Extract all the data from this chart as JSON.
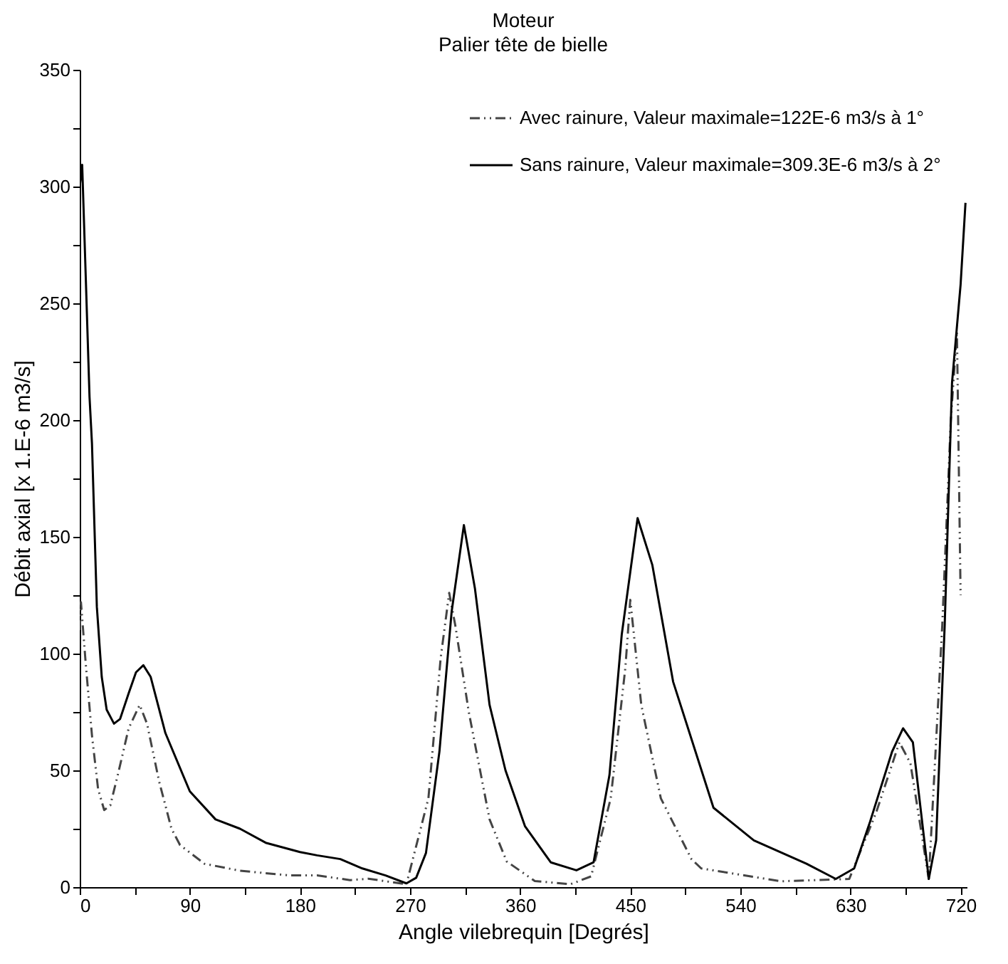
{
  "chart_data": {
    "type": "line",
    "title": "Moteur",
    "subtitle": "Palier tête de bielle",
    "xlabel": "Angle vilebrequin [Degrés]",
    "ylabel": "Débit axial [x 1.E-6 m3/s]",
    "xlim": [
      0,
      725
    ],
    "ylim": [
      0,
      350
    ],
    "xticks": [
      0,
      {
        "value": 45,
        "label": null
      },
      90,
      {
        "value": 135,
        "label": null
      },
      180,
      {
        "value": 225,
        "label": null
      },
      270,
      {
        "value": 315,
        "label": null
      },
      360,
      {
        "value": 405,
        "label": null
      },
      450,
      {
        "value": 495,
        "label": null
      },
      540,
      {
        "value": 585,
        "label": null
      },
      630,
      {
        "value": 675,
        "label": null
      },
      720
    ],
    "yticks": [
      0,
      {
        "value": 25,
        "label": null
      },
      50,
      {
        "value": 75,
        "label": null
      },
      100,
      {
        "value": 125,
        "label": null
      },
      150,
      {
        "value": 175,
        "label": null
      },
      200,
      {
        "value": 225,
        "label": null
      },
      250,
      {
        "value": 275,
        "label": null
      },
      300,
      {
        "value": 325,
        "label": null
      },
      350
    ],
    "grid": false,
    "legend": "top right",
    "series": [
      {
        "name": "Avec rainure, Valeur maximale=122E-6 m3/s à 1°",
        "color": "#444444",
        "line_style": "dashed",
        "x": [
          0,
          1,
          5,
          10,
          15,
          20,
          25,
          32,
          40,
          49,
          55,
          65,
          75,
          82,
          102,
          131,
          172,
          194,
          221,
          236,
          267,
          285,
          295,
          302,
          307,
          318,
          335,
          349,
          372,
          401,
          418,
          434,
          446,
          450,
          459,
          475,
          500,
          508,
          573,
          629,
          651,
          670,
          679,
          694,
          705,
          712,
          717,
          720
        ],
        "values": [
          110,
          122,
          95,
          65,
          42,
          33,
          35,
          50,
          68,
          78,
          70,
          45,
          25,
          18,
          10,
          7,
          5,
          5,
          3,
          3.6,
          1.2,
          38,
          98,
          126,
          112,
          75,
          29,
          11,
          2.6,
          1.2,
          4.6,
          38,
          94,
          123,
          78,
          38,
          12,
          8,
          2.5,
          3.5,
          32,
          62,
          53,
          3.5,
          112,
          200,
          238,
          125
        ]
      },
      {
        "name": "Sans rainure, Valeur maximale=309.3E-6 m3/s à 2°",
        "color": "#000000",
        "line_style": "solid",
        "x": [
          0,
          2,
          5,
          8,
          10,
          14,
          18,
          22,
          28,
          33,
          40,
          46,
          52,
          58,
          70,
          90,
          111,
          131,
          152,
          180,
          194,
          213,
          231,
          250,
          267,
          275,
          283,
          294,
          304,
          314,
          323,
          335,
          348,
          364,
          385,
          406,
          420,
          433,
          443,
          456,
          468,
          485,
          518,
          551,
          594,
          618,
          633,
          646,
          664,
          673,
          681,
          694,
          700,
          707,
          713,
          720,
          724
        ],
        "values": [
          300,
          309.3,
          260,
          210,
          190,
          120,
          90,
          76,
          70,
          72,
          83,
          92,
          95,
          90,
          66,
          41,
          29,
          25,
          19,
          15,
          13.6,
          12,
          8,
          5,
          1.6,
          4,
          14.6,
          58,
          118,
          155,
          128,
          78,
          50,
          26,
          10.6,
          7.2,
          10.6,
          48,
          108,
          158,
          138,
          88,
          34,
          20,
          10,
          3.5,
          8,
          28,
          58,
          68,
          62,
          3.5,
          20,
          112,
          216,
          258,
          293
        ]
      }
    ]
  }
}
